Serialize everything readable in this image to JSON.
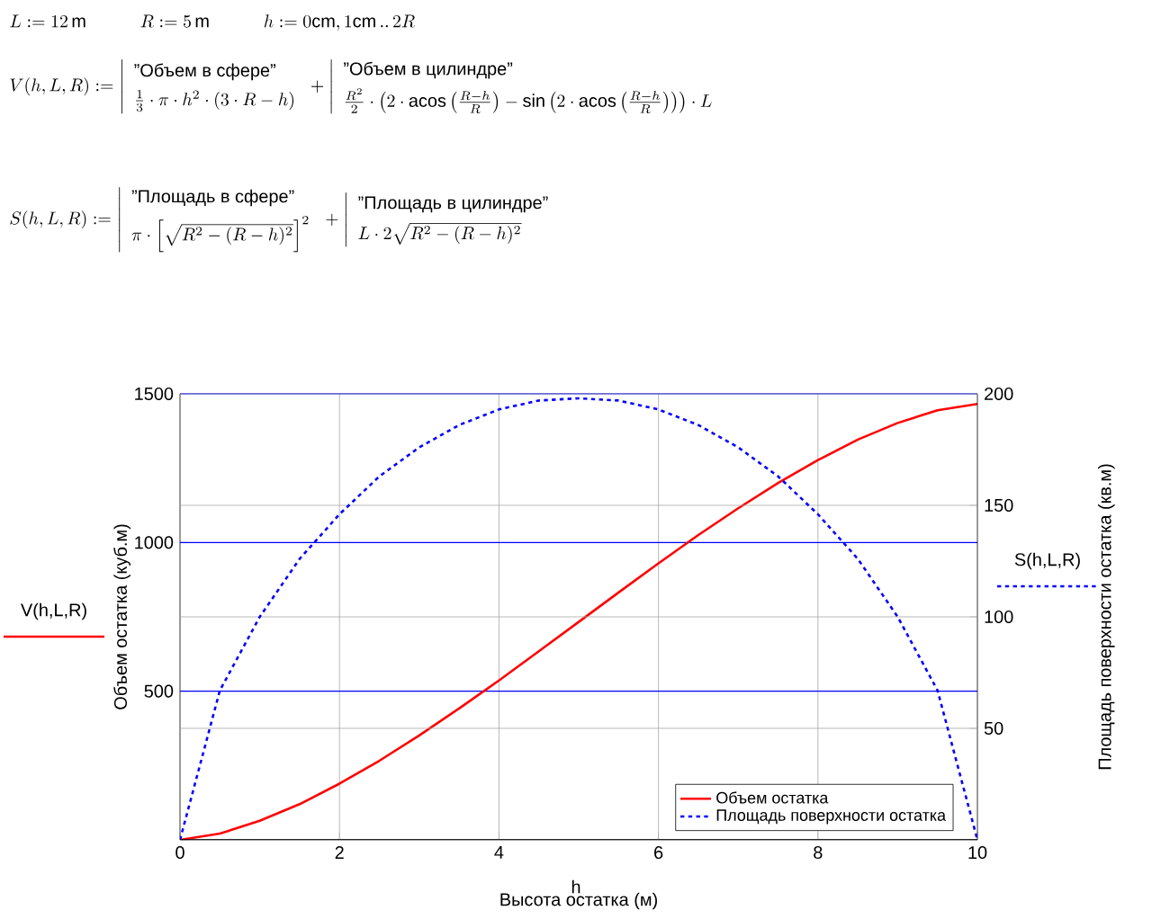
{
  "chart_data": {
    "type": "line",
    "x": [
      0,
      0.5,
      1,
      1.5,
      2,
      2.5,
      3,
      3.5,
      4,
      4.5,
      5,
      5.5,
      6,
      6.5,
      7,
      7.5,
      8,
      8.5,
      9,
      9.5,
      10
    ],
    "series": [
      {
        "name": "Объем остатка",
        "color": "#ff0000",
        "line_style": "solid",
        "values": [
          0,
          21,
          64,
          120,
          189,
          266,
          351,
          442,
          536,
          634,
          733,
          832,
          930,
          1025,
          1115,
          1200,
          1277,
          1346,
          1402,
          1445,
          1466
        ]
      },
      {
        "name": "Площадь поверхности остатка",
        "color": "#0000ff",
        "line_style": "dotted",
        "axis": "y2",
        "values": [
          0,
          67,
          100,
          126,
          146,
          163,
          176,
          186,
          193,
          197,
          198,
          197,
          193,
          186,
          176,
          163,
          146,
          126,
          100,
          67,
          0
        ]
      }
    ],
    "xlabel": "Высота остатка (м)",
    "ylabel": "Объем остатка (куб.м)",
    "y2label": "Площадь поверхности остатка (кв.м)",
    "xlim": [
      0,
      10
    ],
    "xticks": [
      0,
      2,
      4,
      6,
      8,
      10
    ],
    "ylim": [
      0,
      1500
    ],
    "yticks": [
      {
        "value": 0,
        "label": null
      },
      500,
      1000,
      1500
    ],
    "y2lim": [
      0,
      200
    ],
    "y2ticks": [
      {
        "value": 0,
        "label": null
      },
      50,
      100,
      150,
      200
    ],
    "grid": true,
    "legend": "bottom right",
    "annotations": [
      "L := 12\\,\\mathrm{m} \\qquad\\quad R := 5\\,\\mathrm{m} \\qquad\\quad h := 0\\mathrm{cm}, 1\\mathrm{cm}\\,..\\,2R",
      "V(h,L,R) := \\left|\\begin{array}{l}\\text{\"Объем в сфере\"}\\\\[4pt] \\frac{1}{3}\\cdot\\pi\\cdot h^{2}\\cdot(3\\cdot R-h)\\end{array}\\right. + \\left|\\begin{array}{l}\\text{\"Объем в цилиндре\"}\\\\[4pt] \\frac{R^{2}}{2}\\cdot\\left(2\\cdot\\mathrm{acos}\\left(\\frac{R-h}{R}\\right)-\\sin\\left(2\\cdot\\mathrm{acos}\\left(\\frac{R-h}{R}\\right)\\right)\\right)\\cdot L\\end{array}\\right.",
      "S(h,L,R) := \\left|\\begin{array}{l}\\text{\"Площадь в сфере\"}\\\\[4pt] \\pi\\cdot\\left[\\sqrt{R^{2}-(R-h)^{2}}\\right]^{2}\\end{array}\\right. + \\left|\\begin{array}{l}\\text{\"Площадь в цилиндре\"}\\\\[4pt] L\\cdot 2\\sqrt{R^{2}-(R-h)^{2}}\\end{array}\\right.",
      "h",
      "V(h,L,R)",
      "S(h,L,R)"
    ]
  }
}
